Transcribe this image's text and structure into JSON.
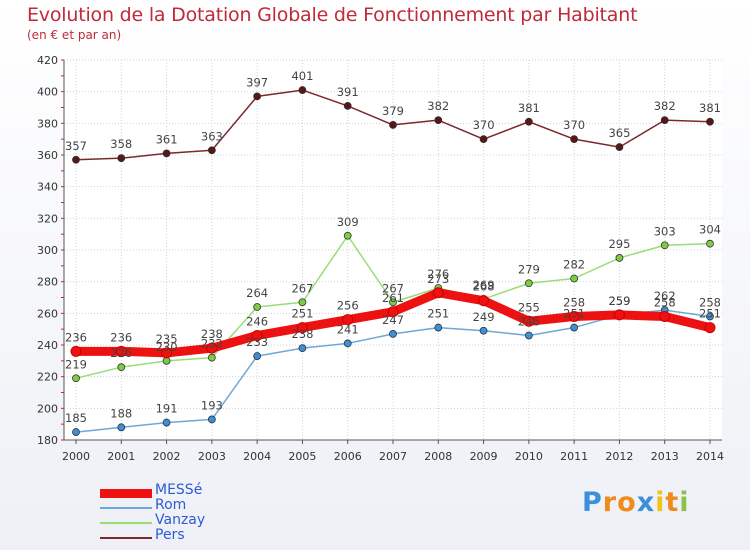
{
  "header": {
    "title": "Evolution de la Dotation Globale de Fonctionnement par Habitant",
    "subtitle": "(en € et par an)"
  },
  "logo": {
    "letters": [
      "P",
      "r",
      "o",
      "x",
      "i",
      "t",
      "i"
    ],
    "colors": [
      "#3c8fd9",
      "#f08a1c",
      "#f08a1c",
      "#3c8fd9",
      "#f0c419",
      "#f08a1c",
      "#8bc34a"
    ]
  },
  "chart_data": {
    "type": "line",
    "x": [
      "2000",
      "2001",
      "2002",
      "2003",
      "2004",
      "2005",
      "2006",
      "2007",
      "2008",
      "2009",
      "2010",
      "2011",
      "2012",
      "2013",
      "2014"
    ],
    "ylim": [
      180,
      420
    ],
    "yticks": [
      180,
      200,
      220,
      240,
      260,
      280,
      300,
      320,
      340,
      360,
      380,
      400,
      420
    ],
    "grid": true,
    "legend_position": "bottom-left",
    "series": [
      {
        "name": "Pers",
        "color": "#7a2a2e",
        "marker": "#5a1515",
        "values": [
          357,
          358,
          361,
          363,
          397,
          401,
          391,
          379,
          382,
          370,
          381,
          370,
          365,
          382,
          381
        ],
        "labels": [
          "357",
          "358",
          "361",
          "363",
          "397",
          "401",
          "391",
          "379",
          "382",
          "370",
          "381",
          "370",
          "365",
          "382",
          "381"
        ]
      },
      {
        "name": "Vanzay",
        "color": "#99dd77",
        "marker": "#7ccc44",
        "values": [
          219,
          226,
          230,
          232,
          264,
          267,
          309,
          267,
          276,
          269,
          279,
          282,
          295,
          303,
          304
        ],
        "labels": [
          "219",
          "226",
          "230",
          "232",
          "264",
          "267",
          "309",
          "267",
          "276",
          "269",
          "279",
          "282",
          "295",
          "303",
          "304"
        ]
      },
      {
        "name": "Rom",
        "color": "#6fa8d6",
        "marker": "#3c8fd9",
        "values": [
          185,
          188,
          191,
          193,
          233,
          238,
          241,
          247,
          251,
          249,
          246,
          251,
          259,
          262,
          258
        ],
        "labels": [
          "185",
          "188",
          "191",
          "193",
          "233",
          "238",
          "241",
          "247",
          "251",
          "249",
          "246",
          "251",
          "259",
          "262",
          "258"
        ]
      },
      {
        "name": "MESSé",
        "color": "#ee1111",
        "marker": "#ee1111",
        "values": [
          236,
          236,
          235,
          238,
          246,
          251,
          256,
          261,
          273,
          268,
          255,
          258,
          259,
          258,
          251
        ],
        "labels": [
          "236",
          "236",
          "235",
          "238",
          "246",
          "251",
          "256",
          "261",
          "273",
          "268",
          "255",
          "258",
          "259",
          "258",
          "251"
        ]
      }
    ],
    "legend": [
      "MESSé",
      "Rom",
      "Vanzay",
      "Pers"
    ]
  }
}
